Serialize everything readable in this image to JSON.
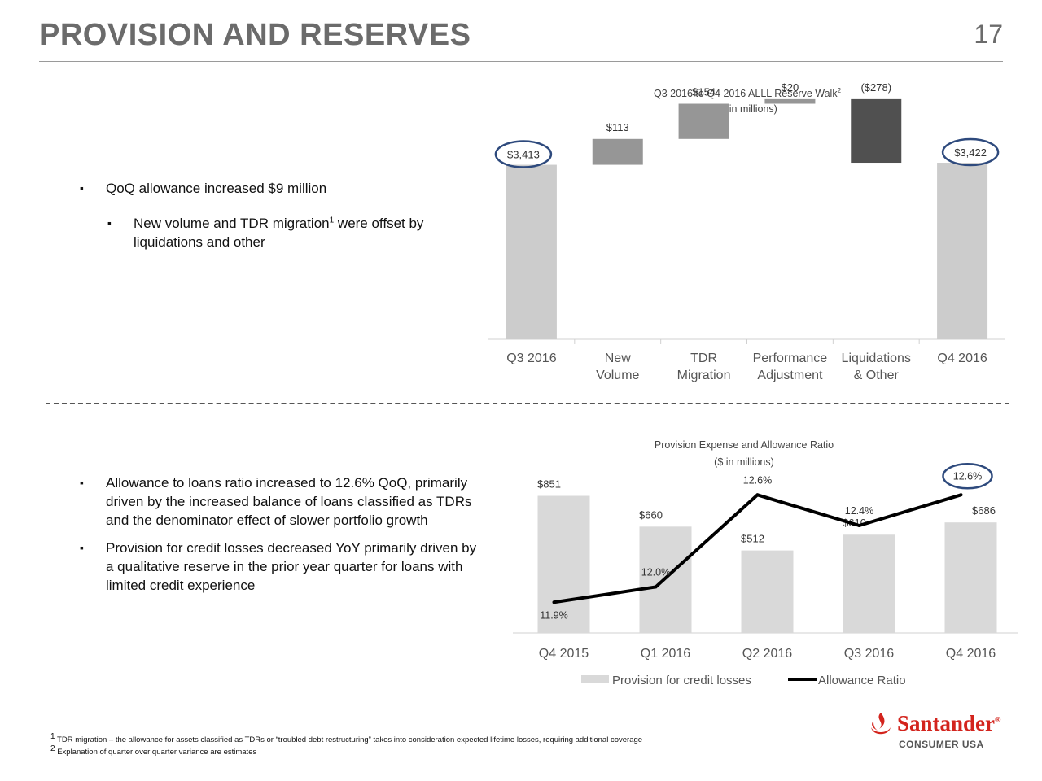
{
  "page": {
    "title": "PROVISION AND RESERVES",
    "number": "17"
  },
  "top_bullets": [
    {
      "text": "QoQ allowance increased $9 million",
      "level": 0
    },
    {
      "text_before": "New volume and TDR migration",
      "sup": "1",
      "text_after": " were offset by",
      "text_line2": "liquidations and other",
      "level": 1
    }
  ],
  "bottom_bullets": [
    {
      "lines": [
        "Allowance to loans ratio increased to 12.6% QoQ, primarily",
        "driven by the increased balance of loans classified as TDRs",
        "and the denominator effect of slower portfolio growth"
      ]
    },
    {
      "lines": [
        "Provision for credit losses decreased YoY primarily driven by",
        "a qualitative reserve in the prior year quarter for loans with",
        "limited credit experience"
      ]
    }
  ],
  "chart_data": [
    {
      "type": "waterfall",
      "title": "Q3 2016 to Q4 2016 ALLL Reserve Walk",
      "title_sup": "2",
      "subtitle": "($ in millions)",
      "categories": [
        [
          "Q3 2016"
        ],
        [
          "New",
          "Volume"
        ],
        [
          "TDR",
          "Migration"
        ],
        [
          "Performance",
          "Adjustment"
        ],
        [
          "Liquidations",
          "& Other"
        ],
        [
          "Q4 2016"
        ]
      ],
      "values": [
        3413,
        113,
        154,
        20,
        -278,
        3422
      ],
      "bar_kind": [
        "total",
        "delta",
        "delta",
        "delta",
        "delta",
        "total"
      ],
      "data_labels": [
        "$3,413",
        "$113",
        "$154",
        "$20",
        "($278)",
        "$3,422"
      ],
      "highlighted": [
        0,
        5
      ],
      "colors": {
        "total": "#cccccc",
        "delta": "#969696",
        "negative": "#505050",
        "highlight_ring": "#2e4a7d"
      },
      "ylim": [
        2650,
        3600
      ]
    },
    {
      "type": "bar+line",
      "title": "Provision Expense and Allowance Ratio",
      "subtitle": "($ in millions)",
      "categories": [
        "Q4 2015",
        "Q1 2016",
        "Q2 2016",
        "Q3 2016",
        "Q4 2016"
      ],
      "series": [
        {
          "name": "Provision for credit losses",
          "type": "bar",
          "values": [
            851,
            660,
            512,
            610,
            686
          ],
          "labels": [
            "$851",
            "$660",
            "$512",
            "$610",
            "$686"
          ],
          "color": "#d9d9d9"
        },
        {
          "name": "Allowance Ratio",
          "type": "line",
          "values": [
            11.9,
            12.0,
            12.6,
            12.4,
            12.6
          ],
          "labels": [
            "11.9%",
            "12.0%",
            "12.6%",
            "12.4%",
            "12.6%"
          ],
          "color": "#000000"
        }
      ],
      "bar_ylim": [
        0,
        1000
      ],
      "line_ylim": [
        11.7,
        12.75
      ],
      "highlighted": [
        4
      ],
      "legend": [
        "Provision for credit losses",
        "Allowance Ratio"
      ],
      "legend_position": "bottom"
    }
  ],
  "footnotes": [
    {
      "num": "1",
      "text": "TDR migration – the allowance for assets classified as TDRs or “troubled debt restructuring” takes into consideration expected lifetime losses, requiring additional coverage"
    },
    {
      "num": "2",
      "text": "Explanation of quarter over quarter variance are estimates"
    }
  ],
  "logo": {
    "name": "Santander",
    "mark": "®",
    "subtitle": "CONSUMER USA",
    "color": "#d3241d"
  }
}
